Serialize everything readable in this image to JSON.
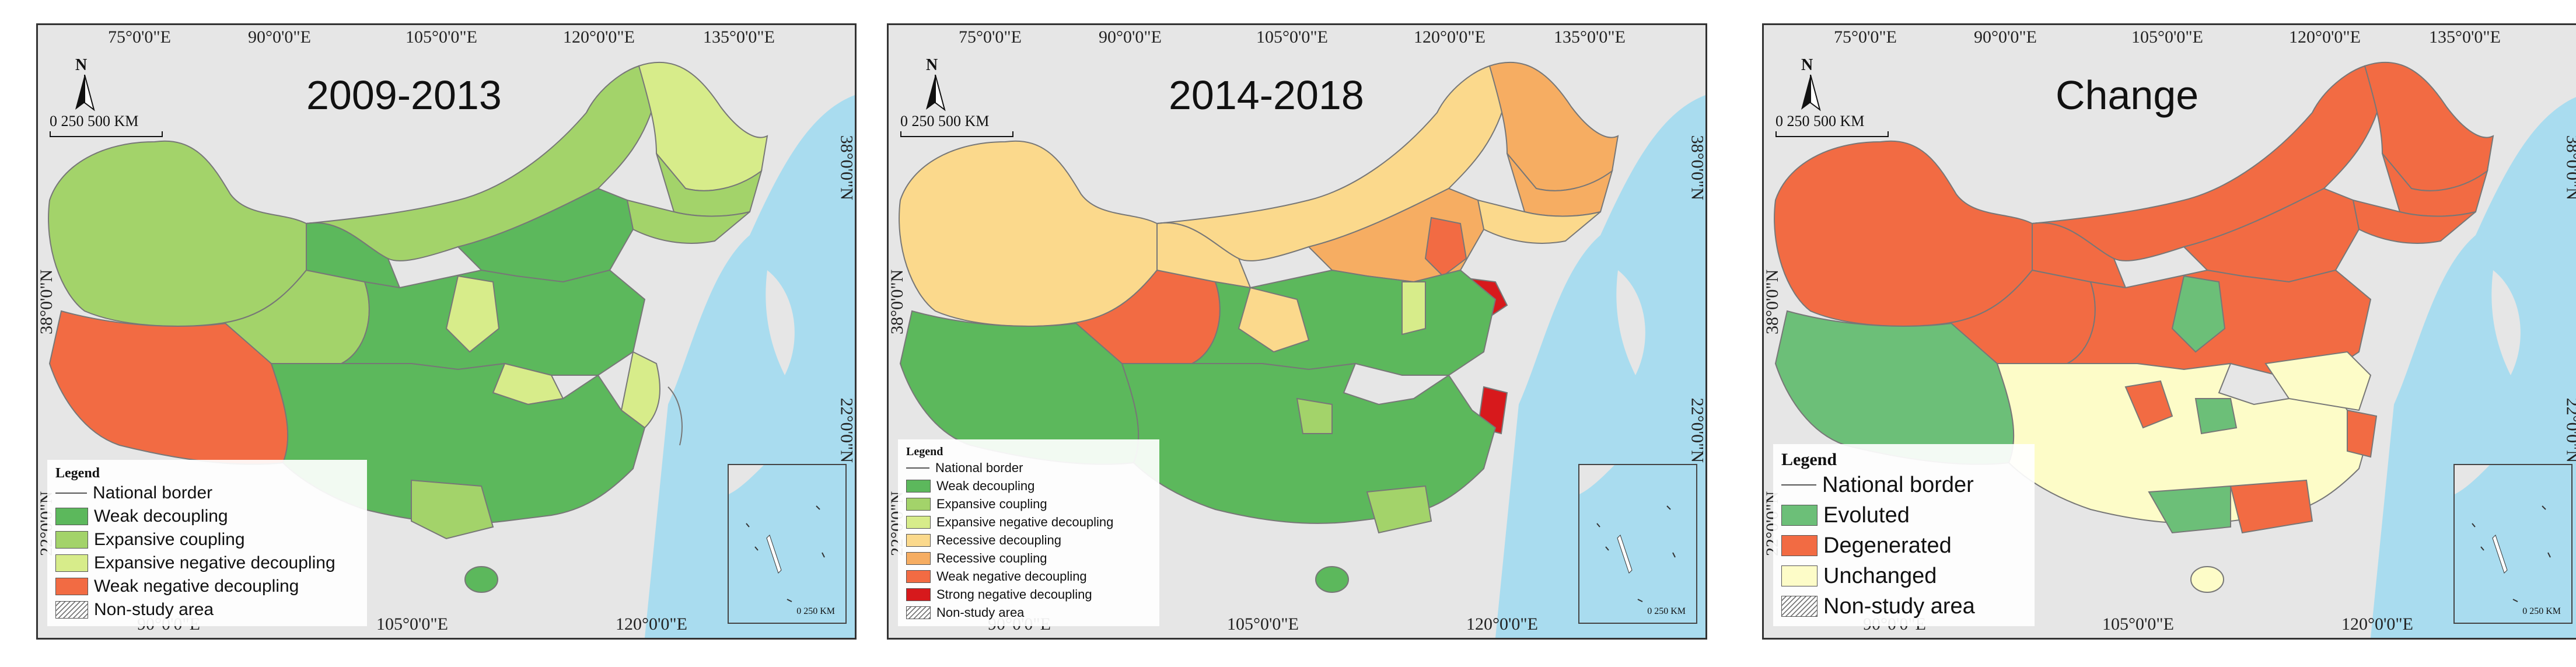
{
  "panels": [
    {
      "title": "2009-2013",
      "ticks_top": [
        "75°0'0\"E",
        "90°0'0\"E",
        "105°0'0\"E",
        "120°0'0\"E",
        "135°0'0\"E"
      ],
      "ticks_bottom": [
        "90°0'0\"E",
        "105°0'0\"E",
        "120°0'0\"E"
      ],
      "ticks_left": [
        "38°0'0\"N",
        "22°0'0\"N"
      ],
      "ticks_right": [
        "38°0'0\"N",
        "22°0'0\"N"
      ],
      "north_label": "N",
      "scale_label": "0  250  500 KM",
      "inset_scale_label": "0  250 KM",
      "legend": {
        "title": "Legend",
        "items": [
          {
            "label": "National border",
            "kind": "line",
            "color": "#666666"
          },
          {
            "label": "Weak decoupling",
            "kind": "fill",
            "color": "#5cb85c"
          },
          {
            "label": "Expansive coupling",
            "kind": "fill",
            "color": "#a3d36a"
          },
          {
            "label": "Expansive negative decoupling",
            "kind": "fill",
            "color": "#d7ec8a"
          },
          {
            "label": "Weak negative decoupling",
            "kind": "fill",
            "color": "#f26b43"
          },
          {
            "label": "Non-study area",
            "kind": "hatch",
            "color": "#ffffff"
          }
        ]
      }
    },
    {
      "title": "2014-2018",
      "ticks_top": [
        "75°0'0\"E",
        "90°0'0\"E",
        "105°0'0\"E",
        "120°0'0\"E",
        "135°0'0\"E"
      ],
      "ticks_bottom": [
        "90°0'0\"E",
        "105°0'0\"E",
        "120°0'0\"E"
      ],
      "ticks_left": [
        "38°0'0\"N",
        "22°0'0\"N"
      ],
      "ticks_right": [
        "38°0'0\"N",
        "22°0'0\"N"
      ],
      "north_label": "N",
      "scale_label": "0  250  500 KM",
      "inset_scale_label": "0  250 KM",
      "legend": {
        "title": "Legend",
        "items": [
          {
            "label": "National border",
            "kind": "line",
            "color": "#666666"
          },
          {
            "label": "Weak decoupling",
            "kind": "fill",
            "color": "#5cb85c"
          },
          {
            "label": "Expansive coupling",
            "kind": "fill",
            "color": "#a3d36a"
          },
          {
            "label": "Expansive negative decoupling",
            "kind": "fill",
            "color": "#d7ec8a"
          },
          {
            "label": "Recessive decoupling",
            "kind": "fill",
            "color": "#fbd98c"
          },
          {
            "label": "Recessive coupling",
            "kind": "fill",
            "color": "#f6ad62"
          },
          {
            "label": "Weak negative decoupling",
            "kind": "fill",
            "color": "#f26b43"
          },
          {
            "label": "Strong negative decoupling",
            "kind": "fill",
            "color": "#d7191c"
          },
          {
            "label": "Non-study area",
            "kind": "hatch",
            "color": "#ffffff"
          }
        ]
      }
    },
    {
      "title": "Change",
      "ticks_top": [
        "75°0'0\"E",
        "90°0'0\"E",
        "105°0'0\"E",
        "120°0'0\"E",
        "135°0'0\"E"
      ],
      "ticks_bottom": [
        "90°0'0\"E",
        "105°0'0\"E",
        "120°0'0\"E"
      ],
      "ticks_left": [
        "38°0'0\"N",
        "22°0'0\"N"
      ],
      "ticks_right": [
        "38°0'0\"N",
        "22°0'0\"N"
      ],
      "north_label": "N",
      "scale_label": "0  250  500 KM",
      "inset_scale_label": "0  250 KM",
      "legend": {
        "title": "Legend",
        "items": [
          {
            "label": "National border",
            "kind": "line",
            "color": "#666666"
          },
          {
            "label": "Evoluted",
            "kind": "fill",
            "color": "#6cbf78"
          },
          {
            "label": "Degenerated",
            "kind": "fill",
            "color": "#f26b43"
          },
          {
            "label": "Unchanged",
            "kind": "fill",
            "color": "#fdfcc8"
          },
          {
            "label": "Non-study area",
            "kind": "hatch",
            "color": "#ffffff"
          }
        ]
      }
    }
  ],
  "colors": {
    "sea": "#a9dcef",
    "land_outside": "#e6e6e6",
    "border": "#777777"
  }
}
